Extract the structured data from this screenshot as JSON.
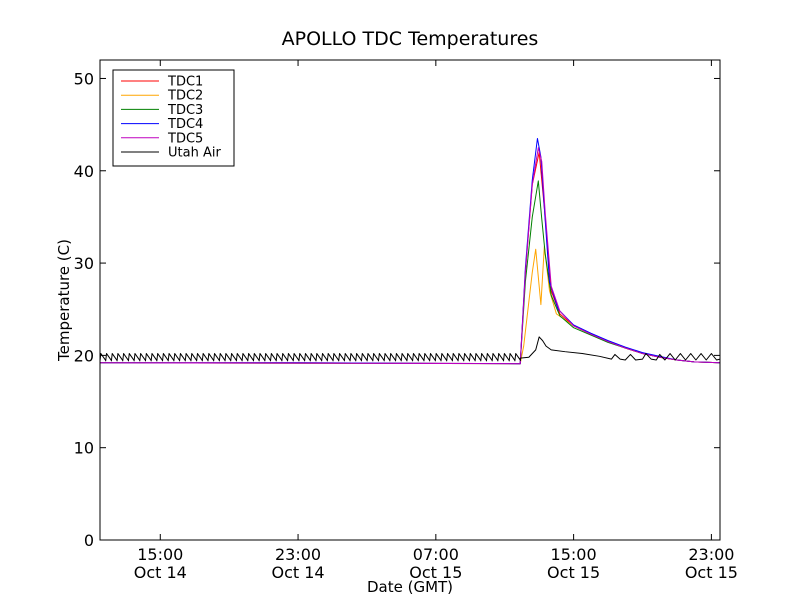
{
  "chart_data": {
    "type": "line",
    "title": "APOLLO TDC Temperatures",
    "xlabel": "Date (GMT)",
    "ylabel": "Temperature (C)",
    "x_unit": "hours since Oct 14 00:00 GMT",
    "xlim": [
      11.5,
      47.5
    ],
    "ylim": [
      0,
      52
    ],
    "yticks": [
      0,
      10,
      20,
      30,
      40,
      50
    ],
    "xticks": [
      {
        "value": 15,
        "time": "15:00",
        "date": "Oct 14"
      },
      {
        "value": 23,
        "time": "23:00",
        "date": "Oct 14"
      },
      {
        "value": 31,
        "time": "07:00",
        "date": "Oct 15"
      },
      {
        "value": 39,
        "time": "15:00",
        "date": "Oct 15"
      },
      {
        "value": 47,
        "time": "23:00",
        "date": "Oct 15"
      }
    ],
    "legend_position": "top-left",
    "series": [
      {
        "name": "TDC1",
        "color": "#ff0000",
        "points": [
          [
            11.5,
            19.2
          ],
          [
            23,
            19.2
          ],
          [
            35.9,
            19.1
          ],
          [
            36.2,
            29
          ],
          [
            36.6,
            38.5
          ],
          [
            37,
            42
          ],
          [
            37.3,
            36
          ],
          [
            37.7,
            27
          ],
          [
            38.2,
            24.5
          ],
          [
            39,
            23.2
          ],
          [
            40,
            22.3
          ],
          [
            41,
            21.5
          ],
          [
            42,
            20.8
          ],
          [
            43,
            20.2
          ],
          [
            44,
            19.8
          ],
          [
            45,
            19.5
          ],
          [
            46,
            19.3
          ],
          [
            47.5,
            19.2
          ]
        ]
      },
      {
        "name": "TDC2",
        "color": "#ffa500",
        "points": [
          [
            11.5,
            19.2
          ],
          [
            35.9,
            19.1
          ],
          [
            36.1,
            21
          ],
          [
            36.6,
            29
          ],
          [
            36.8,
            31.5
          ],
          [
            37.1,
            25.5
          ],
          [
            37.3,
            31.8
          ],
          [
            37.6,
            27
          ],
          [
            38,
            24.5
          ],
          [
            39,
            23.2
          ],
          [
            40,
            22.3
          ],
          [
            41,
            21.5
          ],
          [
            42,
            20.8
          ],
          [
            43,
            20.2
          ],
          [
            44,
            19.8
          ],
          [
            45,
            19.5
          ],
          [
            46,
            19.3
          ],
          [
            47.5,
            19.2
          ]
        ]
      },
      {
        "name": "TDC3",
        "color": "#008000",
        "points": [
          [
            11.5,
            19.2
          ],
          [
            35.9,
            19.1
          ],
          [
            36.2,
            28
          ],
          [
            36.6,
            35
          ],
          [
            36.95,
            38.9
          ],
          [
            37.15,
            34.8
          ],
          [
            37.35,
            31
          ],
          [
            37.7,
            26.5
          ],
          [
            38.2,
            24.3
          ],
          [
            39,
            23
          ],
          [
            40,
            22.2
          ],
          [
            41,
            21.4
          ],
          [
            42,
            20.8
          ],
          [
            43,
            20.2
          ],
          [
            44,
            19.8
          ],
          [
            45,
            19.5
          ],
          [
            46,
            19.3
          ],
          [
            47.5,
            19.2
          ]
        ]
      },
      {
        "name": "TDC4",
        "color": "#0000ff",
        "points": [
          [
            11.5,
            19.2
          ],
          [
            23,
            19.2
          ],
          [
            35.9,
            19.1
          ],
          [
            36.2,
            29.5
          ],
          [
            36.6,
            39
          ],
          [
            36.9,
            43.5
          ],
          [
            37.1,
            41.5
          ],
          [
            37.3,
            36
          ],
          [
            37.6,
            28
          ],
          [
            38.1,
            25
          ],
          [
            39,
            23.3
          ],
          [
            40,
            22.4
          ],
          [
            41,
            21.6
          ],
          [
            42,
            20.9
          ],
          [
            43,
            20.3
          ],
          [
            44,
            19.9
          ],
          [
            45,
            19.5
          ],
          [
            46,
            19.3
          ],
          [
            47.5,
            19.2
          ]
        ]
      },
      {
        "name": "TDC5",
        "color": "#bf00bf",
        "points": [
          [
            11.5,
            19.2
          ],
          [
            35.9,
            19.1
          ],
          [
            36.2,
            29
          ],
          [
            36.6,
            38.5
          ],
          [
            36.95,
            42.5
          ],
          [
            37.15,
            41
          ],
          [
            37.35,
            35.5
          ],
          [
            37.7,
            27.5
          ],
          [
            38.2,
            24.8
          ],
          [
            39,
            23.2
          ],
          [
            40,
            22.3
          ],
          [
            41,
            21.5
          ],
          [
            42,
            20.8
          ],
          [
            43,
            20.2
          ],
          [
            44,
            19.8
          ],
          [
            45,
            19.5
          ],
          [
            46,
            19.3
          ],
          [
            47.5,
            19.2
          ]
        ]
      },
      {
        "name": "Utah Air",
        "color": "#000000",
        "oscillation": {
          "start": 11.5,
          "end": 35.9,
          "period": 0.33,
          "low": 19.4,
          "high": 20.2
        },
        "points": [
          [
            35.9,
            19.7
          ],
          [
            36.4,
            19.8
          ],
          [
            36.8,
            20.6
          ],
          [
            37,
            22.0
          ],
          [
            37.2,
            21.6
          ],
          [
            37.4,
            21
          ],
          [
            37.7,
            20.6
          ],
          [
            38.5,
            20.4
          ],
          [
            39.5,
            20.2
          ],
          [
            40.5,
            19.9
          ],
          [
            41.2,
            19.6
          ],
          [
            41.4,
            20.1
          ],
          [
            41.7,
            19.6
          ],
          [
            42,
            19.5
          ],
          [
            42.3,
            20.1
          ],
          [
            42.6,
            19.5
          ],
          [
            43,
            19.6
          ],
          [
            43.2,
            20.2
          ],
          [
            43.5,
            19.6
          ],
          [
            43.8,
            19.5
          ],
          [
            44,
            20.1
          ],
          [
            44.3,
            19.5
          ],
          [
            44.6,
            20.2
          ],
          [
            44.9,
            19.5
          ],
          [
            45.2,
            20.2
          ],
          [
            45.5,
            19.5
          ],
          [
            45.8,
            20.2
          ],
          [
            46.1,
            19.5
          ],
          [
            46.4,
            20.2
          ],
          [
            46.7,
            19.5
          ],
          [
            47,
            20.2
          ],
          [
            47.3,
            19.5
          ],
          [
            47.5,
            19.6
          ]
        ]
      }
    ]
  }
}
